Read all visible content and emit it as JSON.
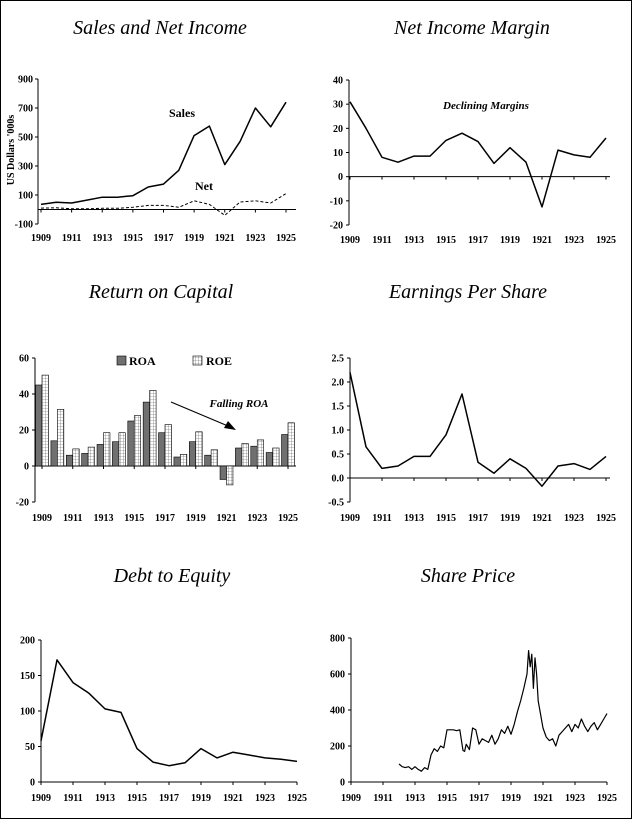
{
  "chart_data": [
    {
      "id": "sales",
      "type": "line",
      "title": "Sales and Net Income",
      "ylabel": "US Dollars '000s",
      "x": [
        1909,
        1910,
        1911,
        1912,
        1913,
        1914,
        1915,
        1916,
        1917,
        1918,
        1919,
        1920,
        1921,
        1922,
        1923,
        1924,
        1925
      ],
      "series": [
        {
          "name": "Sales",
          "style": "solid",
          "values": [
            35,
            50,
            45,
            65,
            85,
            85,
            95,
            155,
            175,
            270,
            510,
            575,
            310,
            470,
            700,
            570,
            740
          ]
        },
        {
          "name": "Net",
          "style": "dashed",
          "values": [
            10,
            12,
            5,
            5,
            8,
            8,
            15,
            28,
            28,
            15,
            60,
            35,
            -40,
            52,
            60,
            45,
            110
          ]
        }
      ],
      "xlim": [
        1909,
        1925
      ],
      "ylim": [
        -100,
        900
      ],
      "yticks": [
        -100,
        100,
        300,
        500,
        700,
        900
      ],
      "xticks": [
        1909,
        1911,
        1913,
        1915,
        1917,
        1919,
        1921,
        1923,
        1925
      ],
      "xlabel": ""
    },
    {
      "id": "margin",
      "type": "line",
      "title": "Net Income Margin",
      "annotation": "Declining Margins",
      "x": [
        1909,
        1910,
        1911,
        1912,
        1913,
        1914,
        1915,
        1916,
        1917,
        1918,
        1919,
        1920,
        1921,
        1922,
        1923,
        1924,
        1925
      ],
      "series": [
        {
          "values": [
            31,
            20,
            8,
            6,
            8.5,
            8.5,
            15,
            18,
            14.5,
            5.5,
            12,
            6,
            -12.5,
            11,
            9,
            8,
            16
          ]
        }
      ],
      "xlim": [
        1909,
        1925
      ],
      "ylim": [
        -20,
        40
      ],
      "yticks": [
        -20,
        -10,
        0,
        10,
        20,
        30,
        40
      ],
      "xticks": [
        1909,
        1911,
        1913,
        1915,
        1917,
        1919,
        1921,
        1923,
        1925
      ],
      "xlabel": "",
      "ylabel": ""
    },
    {
      "id": "roc",
      "type": "bar",
      "title": "Return on Capital",
      "annotation": "Falling ROA",
      "categories": [
        1909,
        1910,
        1911,
        1912,
        1913,
        1914,
        1915,
        1916,
        1917,
        1918,
        1919,
        1920,
        1921,
        1922,
        1923,
        1924,
        1925
      ],
      "series": [
        {
          "name": "ROA",
          "color": "#707070",
          "values": [
            45,
            14,
            6,
            7,
            12,
            13.5,
            25,
            35.5,
            18.5,
            5,
            13.5,
            6,
            -7.5,
            10,
            11,
            7.5,
            17.5
          ]
        },
        {
          "name": "ROE",
          "color": "#ffffff",
          "pattern": "grid",
          "values": [
            50.5,
            31.5,
            9.5,
            10.5,
            18.5,
            18.5,
            28,
            42,
            23,
            6.5,
            19,
            9,
            -10.5,
            12.5,
            14.5,
            10,
            24
          ]
        }
      ],
      "legend_placement": "top-center",
      "ylim": [
        -20,
        60
      ],
      "yticks": [
        -20,
        0,
        20,
        40,
        60
      ],
      "xticks": [
        1909,
        1911,
        1913,
        1915,
        1917,
        1919,
        1921,
        1923,
        1925
      ],
      "xlabel": "",
      "ylabel": ""
    },
    {
      "id": "eps",
      "type": "line",
      "title": "Earnings Per Share",
      "x": [
        1909,
        1910,
        1911,
        1912,
        1913,
        1914,
        1915,
        1916,
        1917,
        1918,
        1919,
        1920,
        1921,
        1922,
        1923,
        1924,
        1925
      ],
      "series": [
        {
          "values": [
            2.2,
            0.65,
            0.2,
            0.25,
            0.45,
            0.45,
            0.9,
            1.75,
            0.33,
            0.1,
            0.4,
            0.2,
            -0.17,
            0.25,
            0.3,
            0.18,
            0.45
          ]
        }
      ],
      "xlim": [
        1909,
        1925
      ],
      "ylim": [
        -0.5,
        2.5
      ],
      "yticks": [
        -0.5,
        0,
        0.5,
        1,
        1.5,
        2,
        2.5
      ],
      "ytick_labels": [
        "-0.5",
        "0.0",
        "0.5",
        "1.0",
        "1.5",
        "2.0",
        "2.5"
      ],
      "xticks": [
        1909,
        1911,
        1913,
        1915,
        1917,
        1919,
        1921,
        1923,
        1925
      ],
      "xlabel": "",
      "ylabel": ""
    },
    {
      "id": "dte",
      "type": "line",
      "title": "Debt to Equity",
      "x": [
        1909,
        1910,
        1911,
        1912,
        1913,
        1914,
        1915,
        1916,
        1917,
        1918,
        1919,
        1920,
        1921,
        1922,
        1923,
        1924,
        1925
      ],
      "series": [
        {
          "values": [
            58,
            172,
            140,
            125,
            103,
            98,
            47,
            28,
            23,
            27,
            47,
            34,
            42,
            38,
            34,
            32,
            29
          ]
        }
      ],
      "xlim": [
        1909,
        1925
      ],
      "ylim": [
        0,
        200
      ],
      "yticks": [
        0,
        50,
        100,
        150,
        200
      ],
      "xticks": [
        1909,
        1911,
        1913,
        1915,
        1917,
        1919,
        1921,
        1923,
        1925
      ],
      "xlabel": "",
      "ylabel": ""
    },
    {
      "id": "price",
      "type": "line",
      "title": "Share Price",
      "x": [
        1912.0,
        1912.2,
        1912.4,
        1912.6,
        1912.8,
        1913.0,
        1913.2,
        1913.4,
        1913.6,
        1913.8,
        1914.0,
        1914.2,
        1914.4,
        1914.6,
        1914.8,
        1915.0,
        1915.2,
        1915.4,
        1915.6,
        1915.8,
        1916.0,
        1916.1,
        1916.2,
        1916.4,
        1916.6,
        1916.8,
        1917.0,
        1917.2,
        1917.4,
        1917.6,
        1917.8,
        1918.0,
        1918.2,
        1918.4,
        1918.6,
        1918.8,
        1919.0,
        1919.2,
        1919.4,
        1919.6,
        1919.8,
        1920.0,
        1920.1,
        1920.2,
        1920.3,
        1920.4,
        1920.5,
        1920.6,
        1920.7,
        1920.8,
        1921.0,
        1921.2,
        1921.4,
        1921.6,
        1921.8,
        1922.0,
        1922.2,
        1922.4,
        1922.6,
        1922.8,
        1923.0,
        1923.2,
        1923.4,
        1923.6,
        1923.8,
        1924.0,
        1924.2,
        1924.4,
        1924.6,
        1924.8,
        1925.0
      ],
      "series": [
        {
          "values": [
            100,
            85,
            80,
            85,
            70,
            85,
            70,
            60,
            80,
            70,
            150,
            185,
            170,
            200,
            190,
            290,
            290,
            290,
            285,
            290,
            175,
            170,
            210,
            180,
            300,
            290,
            210,
            240,
            230,
            220,
            260,
            210,
            240,
            290,
            270,
            310,
            265,
            320,
            390,
            450,
            520,
            600,
            730,
            640,
            710,
            520,
            690,
            600,
            450,
            400,
            300,
            250,
            230,
            240,
            200,
            260,
            280,
            300,
            320,
            280,
            320,
            300,
            350,
            310,
            280,
            310,
            330,
            290,
            320,
            350,
            380
          ]
        }
      ],
      "xlim": [
        1909,
        1925
      ],
      "ylim": [
        0,
        800
      ],
      "yticks": [
        0,
        200,
        400,
        600,
        800
      ],
      "xticks": [
        1909,
        1911,
        1913,
        1915,
        1917,
        1919,
        1921,
        1923,
        1925
      ],
      "xlabel": "",
      "ylabel": ""
    }
  ]
}
